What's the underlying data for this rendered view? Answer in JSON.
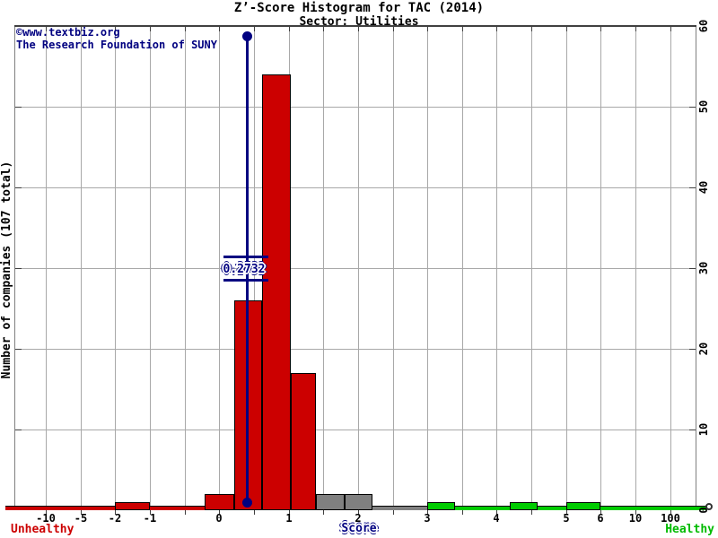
{
  "title": "Z’-Score Histogram for TAC (2014)",
  "subtitle": "Sector: Utilities",
  "watermark": {
    "line1": "©www.textbiz.org",
    "line2": "The Research Foundation of SUNY"
  },
  "axes": {
    "y_label": "Number of companies (107 total)",
    "y_ticks": [
      "0",
      "10",
      "20",
      "30",
      "40",
      "50",
      "60"
    ],
    "x_ticks": [
      "-10",
      "-5",
      "-2",
      "-1",
      "0",
      "1",
      "2",
      "3",
      "4",
      "5",
      "6",
      "10",
      "100"
    ],
    "x_label": "Score",
    "left_region_label": "Unhealthy",
    "right_region_label": "Healthy"
  },
  "marker": {
    "label": "0.2732",
    "value": 0.2732
  },
  "chart_data": {
    "type": "bar",
    "title": "Z’-Score Histogram for TAC (2014)",
    "subtitle": "Sector: Utilities",
    "xlabel": "Score",
    "ylabel": "Number of companies (107 total)",
    "ylim": [
      0,
      60
    ],
    "grid": true,
    "x_tick_labels": [
      "-10",
      "-5",
      "-2",
      "-1",
      "0",
      "1",
      "2",
      "3",
      "4",
      "5",
      "6",
      "10",
      "100"
    ],
    "total_companies": 107,
    "marker_value": 0.2732,
    "legend_note": "red = unhealthy zone, gray = middle zone, green = healthy zone",
    "bins": [
      {
        "range": "-2 to -1",
        "count": 1,
        "zone": "unhealthy",
        "color": "#cc0000"
      },
      {
        "range": "-0.2 to 0.2",
        "count": 2,
        "zone": "unhealthy",
        "color": "#cc0000"
      },
      {
        "range": "0.2 to 0.6",
        "count": 26,
        "zone": "unhealthy",
        "color": "#cc0000"
      },
      {
        "range": "0.6 to 1.0",
        "count": 54,
        "zone": "unhealthy",
        "color": "#cc0000"
      },
      {
        "range": "1.0 to 1.4",
        "count": 17,
        "zone": "unhealthy",
        "color": "#cc0000"
      },
      {
        "range": "1.4 to 1.8",
        "count": 2,
        "zone": "middle",
        "color": "#808080"
      },
      {
        "range": "1.8 to 2.2",
        "count": 2,
        "zone": "middle",
        "color": "#808080"
      },
      {
        "range": "3.0 to 3.4",
        "count": 1,
        "zone": "healthy",
        "color": "#00cc00"
      },
      {
        "range": "4.2 to 4.6",
        "count": 1,
        "zone": "healthy",
        "color": "#00cc00"
      },
      {
        "range": "5 to 6",
        "count": 1,
        "zone": "healthy",
        "color": "#00cc00"
      }
    ]
  },
  "colors": {
    "unhealthy": "#cc0000",
    "middle": "#808080",
    "healthy": "#00cc00",
    "navy": "#000080",
    "grid": "#a8a8a8",
    "healthy_text": "#00bb00"
  }
}
